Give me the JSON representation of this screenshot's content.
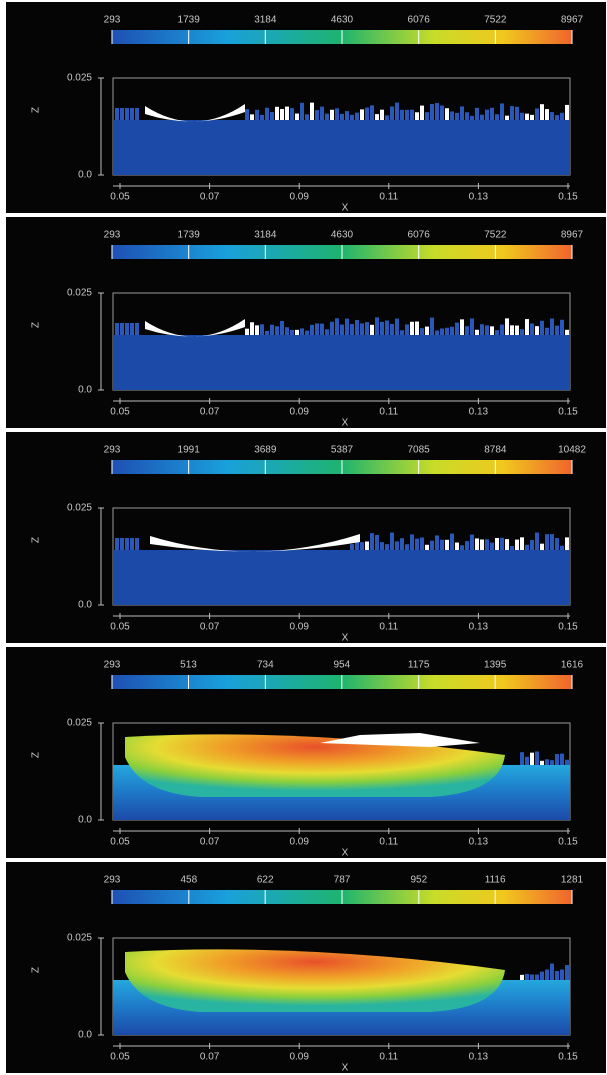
{
  "panels": [
    {
      "colorbar_ticks": [
        293,
        1739,
        3184,
        4630,
        6076,
        7522,
        8967
      ],
      "xticks": [
        0.05,
        0.07,
        0.09,
        0.11,
        0.13,
        0.15
      ],
      "yticks": [
        {
          "value": 0,
          "label": "0.0"
        },
        0.025
      ],
      "xlabel": "X",
      "ylabel": "Z"
    },
    {
      "colorbar_ticks": [
        293,
        1739,
        3184,
        4630,
        6076,
        7522,
        8967
      ],
      "xticks": [
        0.05,
        0.07,
        0.09,
        0.11,
        0.13,
        0.15
      ],
      "yticks": [
        {
          "value": 0,
          "label": "0.0"
        },
        0.025
      ],
      "xlabel": "X",
      "ylabel": "Z"
    },
    {
      "colorbar_ticks": [
        293,
        1991,
        3689,
        5387,
        7085,
        8784,
        10482
      ],
      "xticks": [
        0.05,
        0.07,
        0.09,
        0.11,
        0.13,
        0.15
      ],
      "yticks": [
        {
          "value": 0,
          "label": "0.0"
        },
        0.025
      ],
      "xlabel": "X",
      "ylabel": "Z"
    },
    {
      "colorbar_ticks": [
        293,
        513,
        734,
        954,
        1175,
        1395,
        1616
      ],
      "xticks": [
        0.05,
        0.07,
        0.09,
        0.11,
        0.13,
        0.15
      ],
      "yticks": [
        {
          "value": 0,
          "label": "0.0"
        },
        0.025
      ],
      "xlabel": "X",
      "ylabel": "Z"
    },
    {
      "colorbar_ticks": [
        293,
        458,
        622,
        787,
        952,
        1116,
        1281
      ],
      "xticks": [
        0.05,
        0.07,
        0.09,
        0.11,
        0.13,
        0.15
      ],
      "yticks": [
        {
          "value": 0,
          "label": "0.0"
        },
        0.025
      ],
      "xlabel": "X",
      "ylabel": "Z"
    }
  ]
}
